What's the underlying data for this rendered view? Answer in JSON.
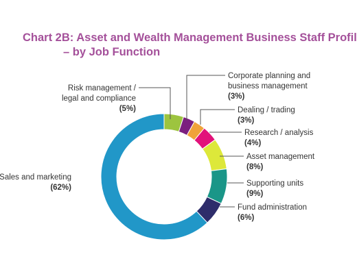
{
  "chart_data": {
    "type": "pie",
    "style": "donut",
    "title": "Chart 2B: Asset and Wealth Management Business Staff Profil",
    "subtitle": "– by Job Function",
    "slices": [
      {
        "label": "Risk management / legal and compliance",
        "value": 5,
        "value_label": "(5%)",
        "color": "#9dc43f",
        "label_lines": [
          "Risk management /",
          "legal and compliance"
        ]
      },
      {
        "label": "Corporate planning and business management",
        "value": 3,
        "value_label": "(3%)",
        "color": "#7b1f7f",
        "label_lines": [
          "Corporate planning and",
          "business management"
        ]
      },
      {
        "label": "Dealing / trading",
        "value": 3,
        "value_label": "(3%)",
        "color": "#f0a23a",
        "label_lines": [
          "Dealing / trading"
        ]
      },
      {
        "label": "Research / analysis",
        "value": 4,
        "value_label": "(4%)",
        "color": "#e2127a",
        "label_lines": [
          "Research / analysis"
        ]
      },
      {
        "label": "Asset management",
        "value": 8,
        "value_label": "(8%)",
        "color": "#dde83a",
        "label_lines": [
          "Asset management"
        ]
      },
      {
        "label": "Supporting units",
        "value": 9,
        "value_label": "(9%)",
        "color": "#1a9688",
        "label_lines": [
          "Supporting units"
        ]
      },
      {
        "label": "Fund administration",
        "value": 6,
        "value_label": "(6%)",
        "color": "#2e2d6b",
        "label_lines": [
          "Fund administration"
        ]
      },
      {
        "label": "Sales and marketing",
        "value": 62,
        "value_label": "(62%)",
        "color": "#2197c8",
        "label_lines": [
          "Sales and marketing"
        ]
      }
    ]
  }
}
